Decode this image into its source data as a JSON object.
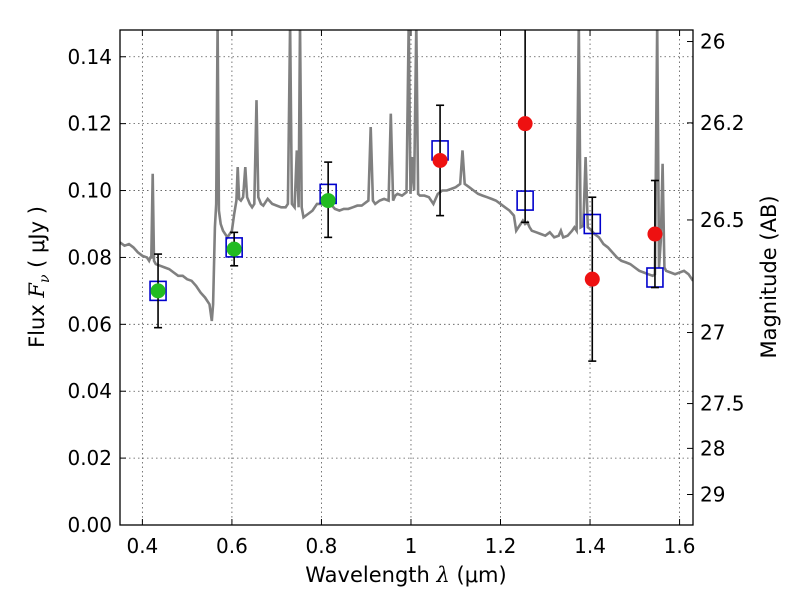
{
  "chart_data": {
    "type": "scatter",
    "title": "",
    "xlabel": {
      "prefix": "Wavelength  ",
      "symbol": "λ",
      "unit": " (μm)"
    },
    "ylabel": {
      "prefix": "Flux  ",
      "symbol": "F",
      "subscript": "ν",
      "unit": "  ( μJy )"
    },
    "y2label": "Magnitude (AB)",
    "xlim": [
      0.35,
      1.63
    ],
    "ylim": [
      0.0,
      0.148
    ],
    "grid": true,
    "grid_style": "dotted",
    "x_ticks": [
      {
        "v": 0.4,
        "label": "0.4"
      },
      {
        "v": 0.6,
        "label": "0.6"
      },
      {
        "v": 0.8,
        "label": "0.8"
      },
      {
        "v": 1.0,
        "label": "1"
      },
      {
        "v": 1.2,
        "label": "1.2"
      },
      {
        "v": 1.4,
        "label": "1.4"
      },
      {
        "v": 1.6,
        "label": "1.6"
      }
    ],
    "y_ticks": [
      {
        "v": 0.0,
        "label": "0.00"
      },
      {
        "v": 0.02,
        "label": "0.02"
      },
      {
        "v": 0.04,
        "label": "0.04"
      },
      {
        "v": 0.06,
        "label": "0.06"
      },
      {
        "v": 0.08,
        "label": "0.08"
      },
      {
        "v": 0.1,
        "label": "0.10"
      },
      {
        "v": 0.12,
        "label": "0.12"
      },
      {
        "v": 0.14,
        "label": "0.14"
      }
    ],
    "y2_ticks": [
      {
        "mag": 26,
        "label": "26"
      },
      {
        "mag": 26.2,
        "label": "26.2"
      },
      {
        "mag": 26.5,
        "label": "26.5"
      },
      {
        "mag": 27,
        "label": "27"
      },
      {
        "mag": 27.5,
        "label": "27.5"
      },
      {
        "mag": 28,
        "label": "28"
      },
      {
        "mag": 29,
        "label": "29"
      }
    ],
    "colors": {
      "model": "#808080",
      "measured_green": "#22bb22",
      "measured_red": "#ee1111",
      "model_box": "#0000cc",
      "errorbar": "#000000",
      "grid": "#555555"
    },
    "series": [
      {
        "kind": "spectrum",
        "points": [
          [
            0.35,
            0.0845
          ],
          [
            0.36,
            0.0835
          ],
          [
            0.37,
            0.084
          ],
          [
            0.38,
            0.083
          ],
          [
            0.39,
            0.0815
          ],
          [
            0.4,
            0.0805
          ],
          [
            0.41,
            0.08
          ],
          [
            0.415,
            0.079
          ],
          [
            0.418,
            0.08
          ],
          [
            0.42,
            0.08
          ],
          [
            0.423,
            0.105
          ],
          [
            0.426,
            0.079
          ],
          [
            0.43,
            0.078
          ],
          [
            0.44,
            0.0775
          ],
          [
            0.45,
            0.077
          ],
          [
            0.46,
            0.0765
          ],
          [
            0.47,
            0.0755
          ],
          [
            0.48,
            0.0745
          ],
          [
            0.49,
            0.0745
          ],
          [
            0.5,
            0.0735
          ],
          [
            0.51,
            0.073
          ],
          [
            0.52,
            0.0715
          ],
          [
            0.53,
            0.0695
          ],
          [
            0.54,
            0.068
          ],
          [
            0.55,
            0.066
          ],
          [
            0.555,
            0.061
          ],
          [
            0.558,
            0.066
          ],
          [
            0.562,
            0.089
          ],
          [
            0.565,
            0.096
          ],
          [
            0.568,
            0.15
          ],
          [
            0.571,
            0.094
          ],
          [
            0.575,
            0.09
          ],
          [
            0.58,
            0.088
          ],
          [
            0.59,
            0.086
          ],
          [
            0.6,
            0.088
          ],
          [
            0.605,
            0.093
          ],
          [
            0.61,
            0.097
          ],
          [
            0.613,
            0.107
          ],
          [
            0.616,
            0.0975
          ],
          [
            0.62,
            0.097
          ],
          [
            0.625,
            0.098
          ],
          [
            0.63,
            0.107
          ],
          [
            0.634,
            0.098
          ],
          [
            0.64,
            0.096
          ],
          [
            0.645,
            0.095
          ],
          [
            0.65,
            0.096
          ],
          [
            0.655,
            0.127
          ],
          [
            0.659,
            0.098
          ],
          [
            0.665,
            0.096
          ],
          [
            0.67,
            0.0955
          ],
          [
            0.675,
            0.0965
          ],
          [
            0.68,
            0.0975
          ],
          [
            0.69,
            0.096
          ],
          [
            0.7,
            0.0955
          ],
          [
            0.71,
            0.095
          ],
          [
            0.72,
            0.095
          ],
          [
            0.725,
            0.096
          ],
          [
            0.73,
            0.15
          ],
          [
            0.734,
            0.096
          ],
          [
            0.74,
            0.095
          ],
          [
            0.745,
            0.112
          ],
          [
            0.749,
            0.095
          ],
          [
            0.752,
            0.15
          ],
          [
            0.756,
            0.095
          ],
          [
            0.76,
            0.092
          ],
          [
            0.77,
            0.093
          ],
          [
            0.78,
            0.094
          ],
          [
            0.79,
            0.096
          ],
          [
            0.8,
            0.096
          ],
          [
            0.81,
            0.0955
          ],
          [
            0.82,
            0.096
          ],
          [
            0.83,
            0.0945
          ],
          [
            0.84,
            0.094
          ],
          [
            0.85,
            0.0945
          ],
          [
            0.86,
            0.0945
          ],
          [
            0.87,
            0.095
          ],
          [
            0.88,
            0.0955
          ],
          [
            0.89,
            0.0955
          ],
          [
            0.9,
            0.0965
          ],
          [
            0.905,
            0.097
          ],
          [
            0.91,
            0.119
          ],
          [
            0.915,
            0.097
          ],
          [
            0.92,
            0.096
          ],
          [
            0.93,
            0.097
          ],
          [
            0.94,
            0.0975
          ],
          [
            0.95,
            0.097
          ],
          [
            0.955,
            0.123
          ],
          [
            0.96,
            0.097
          ],
          [
            0.965,
            0.0985
          ],
          [
            0.97,
            0.099
          ],
          [
            0.98,
            0.0985
          ],
          [
            0.99,
            0.0995
          ],
          [
            0.995,
            0.15
          ],
          [
            0.999,
            0.099
          ],
          [
            1.003,
            0.11
          ],
          [
            1.007,
            0.1
          ],
          [
            1.012,
            0.15
          ],
          [
            1.016,
            0.099
          ],
          [
            1.02,
            0.0985
          ],
          [
            1.03,
            0.0985
          ],
          [
            1.04,
            0.098
          ],
          [
            1.05,
            0.096
          ],
          [
            1.06,
            0.099
          ],
          [
            1.07,
            0.1
          ],
          [
            1.08,
            0.1
          ],
          [
            1.09,
            0.1005
          ],
          [
            1.1,
            0.101
          ],
          [
            1.11,
            0.102
          ],
          [
            1.115,
            0.112
          ],
          [
            1.12,
            0.102
          ],
          [
            1.13,
            0.101
          ],
          [
            1.14,
            0.1
          ],
          [
            1.15,
            0.099
          ],
          [
            1.16,
            0.0985
          ],
          [
            1.17,
            0.098
          ],
          [
            1.18,
            0.0975
          ],
          [
            1.19,
            0.097
          ],
          [
            1.2,
            0.096
          ],
          [
            1.21,
            0.095
          ],
          [
            1.22,
            0.094
          ],
          [
            1.23,
            0.0925
          ],
          [
            1.235,
            0.088
          ],
          [
            1.24,
            0.089
          ],
          [
            1.25,
            0.091
          ],
          [
            1.255,
            0.09
          ],
          [
            1.26,
            0.0905
          ],
          [
            1.265,
            0.089
          ],
          [
            1.27,
            0.088
          ],
          [
            1.28,
            0.0875
          ],
          [
            1.29,
            0.087
          ],
          [
            1.3,
            0.0865
          ],
          [
            1.31,
            0.0875
          ],
          [
            1.32,
            0.086
          ],
          [
            1.33,
            0.0865
          ],
          [
            1.335,
            0.088
          ],
          [
            1.34,
            0.086
          ],
          [
            1.35,
            0.0865
          ],
          [
            1.36,
            0.088
          ],
          [
            1.365,
            0.089
          ],
          [
            1.37,
            0.088
          ],
          [
            1.375,
            0.15
          ],
          [
            1.379,
            0.089
          ],
          [
            1.385,
            0.0895
          ],
          [
            1.39,
            0.11
          ],
          [
            1.395,
            0.089
          ],
          [
            1.4,
            0.0885
          ],
          [
            1.41,
            0.087
          ],
          [
            1.42,
            0.086
          ],
          [
            1.43,
            0.084
          ],
          [
            1.44,
            0.083
          ],
          [
            1.45,
            0.0815
          ],
          [
            1.46,
            0.08
          ],
          [
            1.47,
            0.079
          ],
          [
            1.48,
            0.0785
          ],
          [
            1.49,
            0.078
          ],
          [
            1.5,
            0.077
          ],
          [
            1.51,
            0.076
          ],
          [
            1.52,
            0.0755
          ],
          [
            1.53,
            0.075
          ],
          [
            1.54,
            0.0745
          ],
          [
            1.545,
            0.075
          ],
          [
            1.55,
            0.15
          ],
          [
            1.554,
            0.077
          ],
          [
            1.558,
            0.085
          ],
          [
            1.562,
            0.108
          ],
          [
            1.566,
            0.077
          ],
          [
            1.57,
            0.076
          ],
          [
            1.58,
            0.0755
          ],
          [
            1.59,
            0.075
          ],
          [
            1.6,
            0.0755
          ],
          [
            1.61,
            0.076
          ],
          [
            1.62,
            0.075
          ],
          [
            1.63,
            0.073
          ]
        ]
      },
      {
        "kind": "model_photometry_boxes",
        "points": [
          [
            0.435,
            0.07
          ],
          [
            0.605,
            0.083
          ],
          [
            0.815,
            0.099
          ],
          [
            1.065,
            0.112
          ],
          [
            1.255,
            0.097
          ],
          [
            1.405,
            0.09
          ],
          [
            1.545,
            0.074
          ]
        ]
      },
      {
        "kind": "measured_flux_green",
        "points": [
          {
            "x": 0.435,
            "y": 0.07,
            "ylo": 0.059,
            "yhi": 0.081
          },
          {
            "x": 0.605,
            "y": 0.0825,
            "ylo": 0.0775,
            "yhi": 0.0875
          },
          {
            "x": 0.815,
            "y": 0.097,
            "ylo": 0.086,
            "yhi": 0.1085
          }
        ]
      },
      {
        "kind": "measured_flux_red",
        "points": [
          {
            "x": 1.065,
            "y": 0.109,
            "ylo": 0.0925,
            "yhi": 0.1255
          },
          {
            "x": 1.255,
            "y": 0.12,
            "ylo": 0.0905,
            "yhi": 0.15
          },
          {
            "x": 1.405,
            "y": 0.0735,
            "ylo": 0.049,
            "yhi": 0.098
          },
          {
            "x": 1.545,
            "y": 0.087,
            "ylo": 0.071,
            "yhi": 0.103
          }
        ]
      }
    ]
  }
}
